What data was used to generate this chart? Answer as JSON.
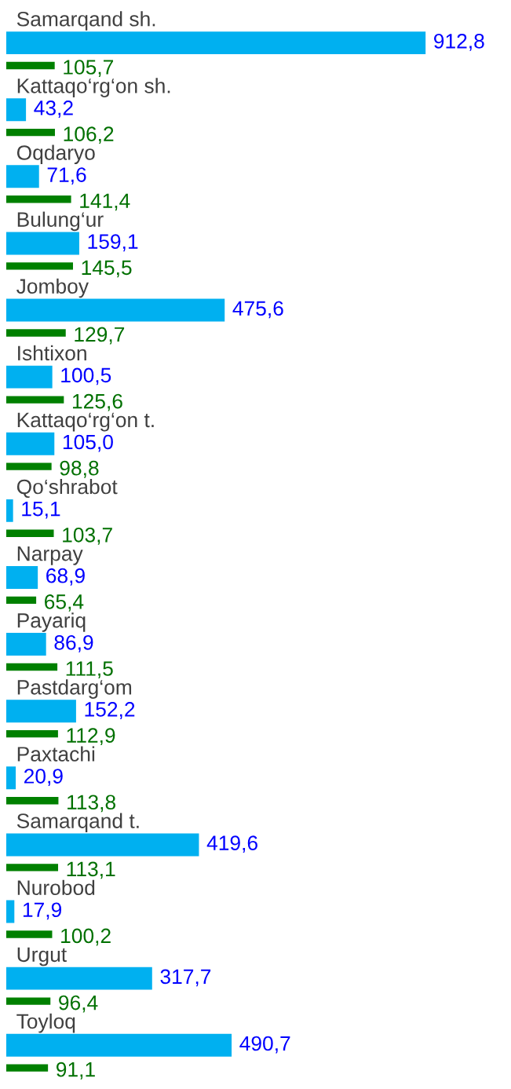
{
  "chart_data": {
    "type": "bar",
    "orientation": "horizontal",
    "categories": [
      "Samarqand sh.",
      "Kattaqo‘rg‘on sh.",
      "Oqdaryo",
      "Bulung‘ur",
      "Jomboy",
      "Ishtixon",
      "Kattaqo‘rg‘on t.",
      "Qo‘shrabot",
      "Narpay",
      "Payariq",
      "Pastdarg‘om",
      "Paxtachi",
      "Samarqand t.",
      "Nurobod",
      "Urgut",
      "Toyloq"
    ],
    "series": [
      {
        "color": "#00b0f0",
        "values": [
          912.8,
          43.2,
          71.6,
          159.1,
          475.6,
          100.5,
          105.0,
          15.1,
          68.9,
          86.9,
          152.2,
          20.9,
          419.6,
          17.9,
          317.7,
          490.7
        ],
        "value_labels": [
          "912,8",
          "43,2",
          "71,6",
          "159,1",
          "475,6",
          "100,5",
          "105,0",
          "15,1",
          "68,9",
          "86,9",
          "152,2",
          "20,9",
          "419,6",
          "17,9",
          "317,7",
          "490,7"
        ]
      },
      {
        "color": "#008000",
        "values": [
          105.7,
          106.2,
          141.4,
          145.5,
          129.7,
          125.6,
          98.8,
          103.7,
          65.4,
          111.5,
          112.9,
          113.8,
          113.1,
          100.2,
          96.4,
          91.1
        ],
        "value_labels": [
          "105,7",
          "106,2",
          "141,4",
          "145,5",
          "129,7",
          "125,6",
          "98,8",
          "103,7",
          "65,4",
          "111,5",
          "112,9",
          "113,8",
          "113,1",
          "100,2",
          "96,4",
          "91,1"
        ]
      }
    ]
  }
}
